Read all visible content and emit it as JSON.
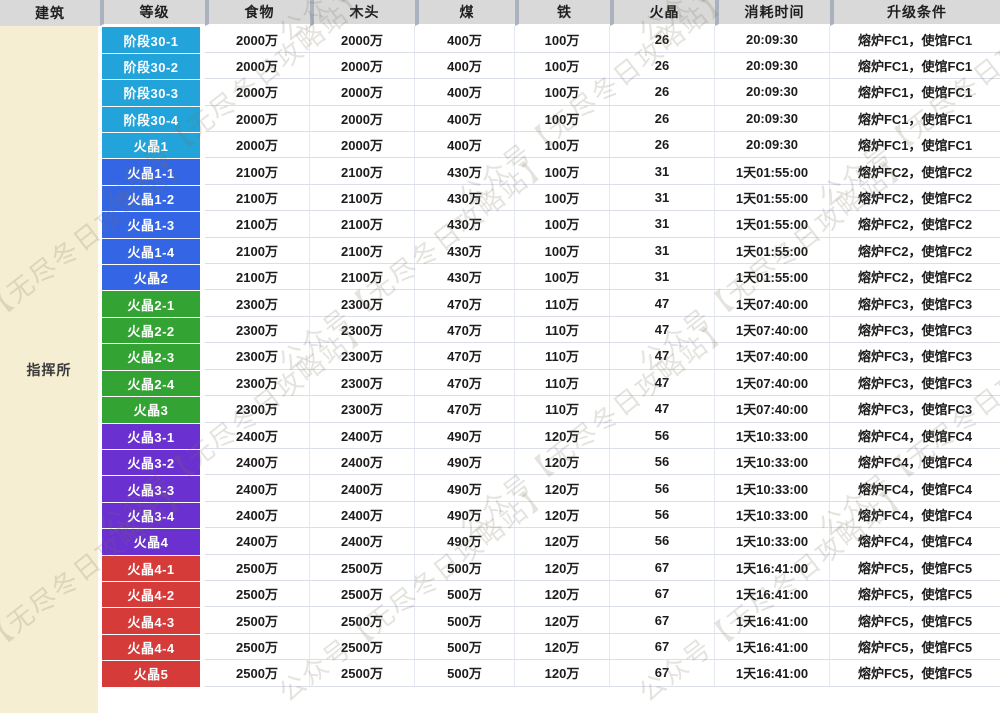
{
  "watermark": {
    "text": "公众号【无尽冬日攻略站】"
  },
  "colors": {
    "group_stage30": "#22a3d9",
    "group_fc1": "#3365e4",
    "group_fc2": "#33a433",
    "group_fc3": "#6a30d0",
    "group_fc4": "#d53b38",
    "header_bg": "#d9d9d9",
    "building_bg": "#f5eed2",
    "grid_line": "#d9dee8"
  },
  "table": {
    "building_header": "建筑",
    "building_name": "指挥所",
    "columns": [
      {
        "key": "level",
        "label": "等级"
      },
      {
        "key": "food",
        "label": "食物"
      },
      {
        "key": "wood",
        "label": "木头"
      },
      {
        "key": "coal",
        "label": "煤"
      },
      {
        "key": "iron",
        "label": "铁"
      },
      {
        "key": "fire_crystal",
        "label": "火晶"
      },
      {
        "key": "time",
        "label": "消耗时间"
      },
      {
        "key": "condition",
        "label": "升级条件"
      }
    ],
    "groups": [
      {
        "name": "stage30",
        "color": "#22a3d9",
        "rows": [
          {
            "level": "阶段30-1",
            "food": "2000万",
            "wood": "2000万",
            "coal": "400万",
            "iron": "100万",
            "fire_crystal": "26",
            "time": "20:09:30",
            "condition": "熔炉FC1，使馆FC1"
          },
          {
            "level": "阶段30-2",
            "food": "2000万",
            "wood": "2000万",
            "coal": "400万",
            "iron": "100万",
            "fire_crystal": "26",
            "time": "20:09:30",
            "condition": "熔炉FC1，使馆FC1"
          },
          {
            "level": "阶段30-3",
            "food": "2000万",
            "wood": "2000万",
            "coal": "400万",
            "iron": "100万",
            "fire_crystal": "26",
            "time": "20:09:30",
            "condition": "熔炉FC1，使馆FC1"
          },
          {
            "level": "阶段30-4",
            "food": "2000万",
            "wood": "2000万",
            "coal": "400万",
            "iron": "100万",
            "fire_crystal": "26",
            "time": "20:09:30",
            "condition": "熔炉FC1，使馆FC1"
          },
          {
            "level": "火晶1",
            "food": "2000万",
            "wood": "2000万",
            "coal": "400万",
            "iron": "100万",
            "fire_crystal": "26",
            "time": "20:09:30",
            "condition": "熔炉FC1，使馆FC1"
          }
        ]
      },
      {
        "name": "fc1",
        "color": "#3365e4",
        "rows": [
          {
            "level": "火晶1-1",
            "food": "2100万",
            "wood": "2100万",
            "coal": "430万",
            "iron": "100万",
            "fire_crystal": "31",
            "time": "1天01:55:00",
            "condition": "熔炉FC2，使馆FC2"
          },
          {
            "level": "火晶1-2",
            "food": "2100万",
            "wood": "2100万",
            "coal": "430万",
            "iron": "100万",
            "fire_crystal": "31",
            "time": "1天01:55:00",
            "condition": "熔炉FC2，使馆FC2"
          },
          {
            "level": "火晶1-3",
            "food": "2100万",
            "wood": "2100万",
            "coal": "430万",
            "iron": "100万",
            "fire_crystal": "31",
            "time": "1天01:55:00",
            "condition": "熔炉FC2，使馆FC2"
          },
          {
            "level": "火晶1-4",
            "food": "2100万",
            "wood": "2100万",
            "coal": "430万",
            "iron": "100万",
            "fire_crystal": "31",
            "time": "1天01:55:00",
            "condition": "熔炉FC2，使馆FC2"
          },
          {
            "level": "火晶2",
            "food": "2100万",
            "wood": "2100万",
            "coal": "430万",
            "iron": "100万",
            "fire_crystal": "31",
            "time": "1天01:55:00",
            "condition": "熔炉FC2，使馆FC2"
          }
        ]
      },
      {
        "name": "fc2",
        "color": "#33a433",
        "rows": [
          {
            "level": "火晶2-1",
            "food": "2300万",
            "wood": "2300万",
            "coal": "470万",
            "iron": "110万",
            "fire_crystal": "47",
            "time": "1天07:40:00",
            "condition": "熔炉FC3，使馆FC3"
          },
          {
            "level": "火晶2-2",
            "food": "2300万",
            "wood": "2300万",
            "coal": "470万",
            "iron": "110万",
            "fire_crystal": "47",
            "time": "1天07:40:00",
            "condition": "熔炉FC3，使馆FC3"
          },
          {
            "level": "火晶2-3",
            "food": "2300万",
            "wood": "2300万",
            "coal": "470万",
            "iron": "110万",
            "fire_crystal": "47",
            "time": "1天07:40:00",
            "condition": "熔炉FC3，使馆FC3"
          },
          {
            "level": "火晶2-4",
            "food": "2300万",
            "wood": "2300万",
            "coal": "470万",
            "iron": "110万",
            "fire_crystal": "47",
            "time": "1天07:40:00",
            "condition": "熔炉FC3，使馆FC3"
          },
          {
            "level": "火晶3",
            "food": "2300万",
            "wood": "2300万",
            "coal": "470万",
            "iron": "110万",
            "fire_crystal": "47",
            "time": "1天07:40:00",
            "condition": "熔炉FC3，使馆FC3"
          }
        ]
      },
      {
        "name": "fc3",
        "color": "#6a30d0",
        "rows": [
          {
            "level": "火晶3-1",
            "food": "2400万",
            "wood": "2400万",
            "coal": "490万",
            "iron": "120万",
            "fire_crystal": "56",
            "time": "1天10:33:00",
            "condition": "熔炉FC4，使馆FC4"
          },
          {
            "level": "火晶3-2",
            "food": "2400万",
            "wood": "2400万",
            "coal": "490万",
            "iron": "120万",
            "fire_crystal": "56",
            "time": "1天10:33:00",
            "condition": "熔炉FC4，使馆FC4"
          },
          {
            "level": "火晶3-3",
            "food": "2400万",
            "wood": "2400万",
            "coal": "490万",
            "iron": "120万",
            "fire_crystal": "56",
            "time": "1天10:33:00",
            "condition": "熔炉FC4，使馆FC4"
          },
          {
            "level": "火晶3-4",
            "food": "2400万",
            "wood": "2400万",
            "coal": "490万",
            "iron": "120万",
            "fire_crystal": "56",
            "time": "1天10:33:00",
            "condition": "熔炉FC4，使馆FC4"
          },
          {
            "level": "火晶4",
            "food": "2400万",
            "wood": "2400万",
            "coal": "490万",
            "iron": "120万",
            "fire_crystal": "56",
            "time": "1天10:33:00",
            "condition": "熔炉FC4，使馆FC4"
          }
        ]
      },
      {
        "name": "fc4",
        "color": "#d53b38",
        "rows": [
          {
            "level": "火晶4-1",
            "food": "2500万",
            "wood": "2500万",
            "coal": "500万",
            "iron": "120万",
            "fire_crystal": "67",
            "time": "1天16:41:00",
            "condition": "熔炉FC5，使馆FC5"
          },
          {
            "level": "火晶4-2",
            "food": "2500万",
            "wood": "2500万",
            "coal": "500万",
            "iron": "120万",
            "fire_crystal": "67",
            "time": "1天16:41:00",
            "condition": "熔炉FC5，使馆FC5"
          },
          {
            "level": "火晶4-3",
            "food": "2500万",
            "wood": "2500万",
            "coal": "500万",
            "iron": "120万",
            "fire_crystal": "67",
            "time": "1天16:41:00",
            "condition": "熔炉FC5，使馆FC5"
          },
          {
            "level": "火晶4-4",
            "food": "2500万",
            "wood": "2500万",
            "coal": "500万",
            "iron": "120万",
            "fire_crystal": "67",
            "time": "1天16:41:00",
            "condition": "熔炉FC5，使馆FC5"
          },
          {
            "level": "火晶5",
            "food": "2500万",
            "wood": "2500万",
            "coal": "500万",
            "iron": "120万",
            "fire_crystal": "67",
            "time": "1天16:41:00",
            "condition": "熔炉FC5，使馆FC5"
          }
        ]
      }
    ]
  }
}
